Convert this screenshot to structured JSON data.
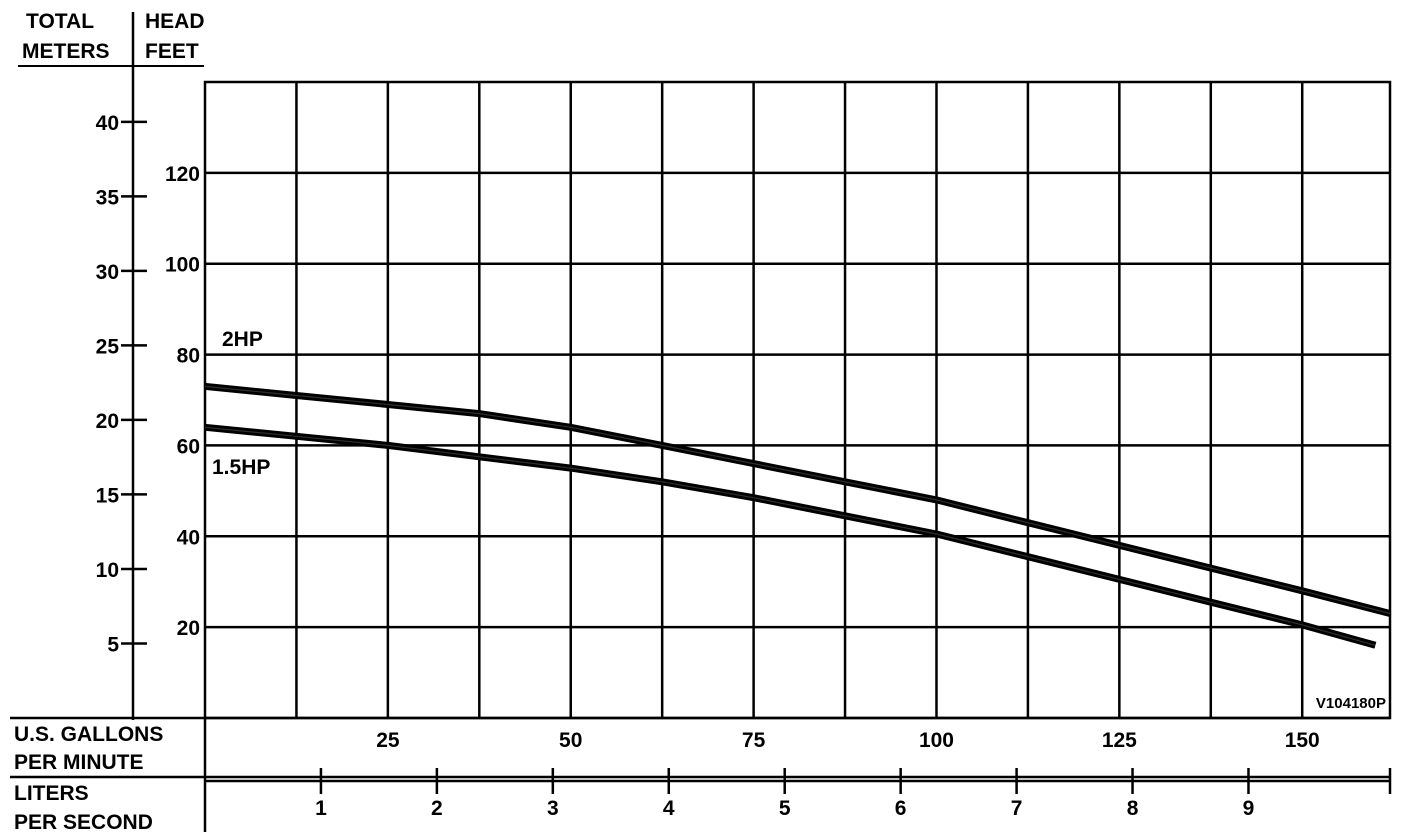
{
  "header": {
    "left_top": "TOTAL",
    "left_bottom": "METERS",
    "right_top": "HEAD",
    "right_bottom": "FEET"
  },
  "figure_code": "V104180P",
  "x_axis_gpm": {
    "label_line1": "U.S. GALLONS",
    "label_line2": "PER MINUTE",
    "ticks": [
      "25",
      "50",
      "75",
      "100",
      "125",
      "150"
    ]
  },
  "x_axis_lps": {
    "label_line1": "LITERS",
    "label_line2": "PER SECOND",
    "ticks": [
      "1",
      "2",
      "3",
      "4",
      "5",
      "6",
      "7",
      "8",
      "9"
    ]
  },
  "y_axis_meters": {
    "ticks": [
      "5",
      "10",
      "15",
      "20",
      "25",
      "30",
      "35",
      "40"
    ]
  },
  "y_axis_feet": {
    "ticks": [
      "20",
      "40",
      "60",
      "80",
      "100",
      "120"
    ]
  },
  "chart_data": {
    "type": "line",
    "x_unit": "U.S. GALLONS PER MINUTE",
    "y_unit": "HEAD FEET",
    "xlim": [
      0,
      162
    ],
    "ylim": [
      0,
      140
    ],
    "grid": true,
    "series": [
      {
        "name": "2HP",
        "x": [
          0,
          12.5,
          25,
          37.5,
          50,
          62.5,
          75,
          87.5,
          100,
          112.5,
          125,
          137.5,
          150,
          162
        ],
        "y": [
          73,
          71,
          69,
          67,
          64,
          60,
          56,
          52,
          48,
          43,
          38,
          33,
          28,
          23
        ]
      },
      {
        "name": "1.5HP",
        "x": [
          0,
          12.5,
          25,
          37.5,
          50,
          62.5,
          75,
          87.5,
          100,
          112.5,
          125,
          137.5,
          150,
          160
        ],
        "y": [
          64,
          62,
          60,
          57.5,
          55,
          52,
          48.5,
          44.5,
          40.5,
          35.5,
          30.5,
          25.5,
          20.5,
          16
        ]
      }
    ]
  }
}
